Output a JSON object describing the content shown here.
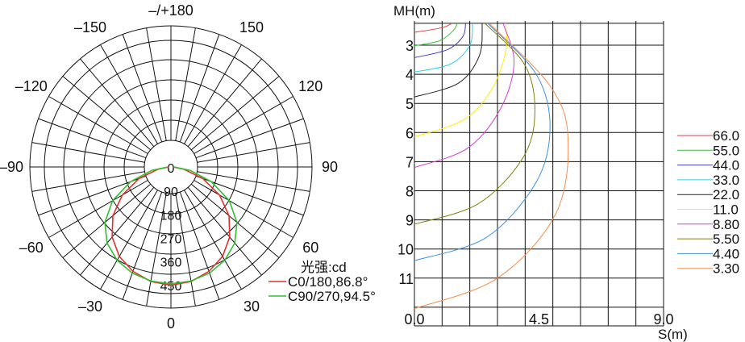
{
  "chart_data": [
    {
      "type": "polar",
      "angle_labels": [
        {
          "text": "–/+180",
          "deg": 180
        },
        {
          "text": "–150",
          "deg": -150
        },
        {
          "text": "150",
          "deg": 150
        },
        {
          "text": "–120",
          "deg": -120
        },
        {
          "text": "120",
          "deg": 120
        },
        {
          "text": "–90",
          "deg": -90
        },
        {
          "text": "90",
          "deg": 90
        },
        {
          "text": "–60",
          "deg": -60
        },
        {
          "text": "60",
          "deg": 60
        },
        {
          "text": "–30",
          "deg": -30
        },
        {
          "text": "30",
          "deg": 30
        },
        {
          "text": "0",
          "deg": 0
        }
      ],
      "radial_labels": [
        "0",
        "90",
        "180",
        "270",
        "360",
        "450"
      ],
      "radial_max": 540,
      "unit_label": "光强:cd",
      "series": [
        {
          "name": "C0/180,86.8°",
          "color": "#e03030",
          "points": [
            [
              0,
              452
            ],
            [
              10,
              445
            ],
            [
              20,
              425
            ],
            [
              30,
              395
            ],
            [
              40,
              350
            ],
            [
              50,
              290
            ],
            [
              60,
              215
            ],
            [
              70,
              130
            ],
            [
              80,
              50
            ],
            [
              90,
              8
            ]
          ]
        },
        {
          "name": "C90/270,94.5°",
          "color": "#30c030",
          "points": [
            [
              0,
              447
            ],
            [
              10,
              443
            ],
            [
              20,
              432
            ],
            [
              30,
              412
            ],
            [
              40,
              380
            ],
            [
              50,
              330
            ],
            [
              60,
              258
            ],
            [
              70,
              165
            ],
            [
              80,
              75
            ],
            [
              90,
              12
            ]
          ]
        }
      ]
    },
    {
      "type": "line",
      "y_axis_label": "MH(m)",
      "x_axis_label": "S(m)",
      "x_tick_labels": [
        "0.0",
        "4.5",
        "9.0"
      ],
      "y_tick_labels": [
        "3",
        "4",
        "5",
        "6",
        "7",
        "8",
        "9",
        "10",
        "11"
      ],
      "xlim": [
        0,
        9.0
      ],
      "ylim": [
        2.25,
        12.25
      ],
      "grid": true,
      "legend_position": "right",
      "series": [
        {
          "name": "66.0",
          "color": "#e04040",
          "points": [
            [
              0,
              2.56
            ],
            [
              1.0,
              2.4
            ],
            [
              1.35,
              2.25
            ]
          ]
        },
        {
          "name": "55.0",
          "color": "#40c040",
          "points": [
            [
              0,
              3.02
            ],
            [
              0.9,
              2.85
            ],
            [
              1.4,
              2.5
            ],
            [
              1.55,
              2.25
            ]
          ]
        },
        {
          "name": "44.0",
          "color": "#4040c0",
          "points": [
            [
              0,
              3.43
            ],
            [
              1.2,
              3.15
            ],
            [
              1.75,
              2.7
            ],
            [
              1.85,
              2.25
            ]
          ]
        },
        {
          "name": "33.0",
          "color": "#30d0e0",
          "points": [
            [
              0,
              3.92
            ],
            [
              1.3,
              3.65
            ],
            [
              2.0,
              3.0
            ],
            [
              2.1,
              2.25
            ]
          ]
        },
        {
          "name": "22.0",
          "color": "#222222",
          "points": [
            [
              0,
              4.78
            ],
            [
              1.6,
              4.3
            ],
            [
              2.35,
              3.35
            ],
            [
              2.45,
              2.25
            ]
          ]
        },
        {
          "name": "11.0",
          "color": "#ffee00",
          "points": [
            [
              0,
              6.15
            ],
            [
              1.8,
              5.55
            ],
            [
              2.8,
              4.5
            ],
            [
              3.3,
              3.2
            ],
            [
              3.3,
              2.25
            ]
          ]
        },
        {
          "name": "8.80",
          "color": "#d040d0",
          "points": [
            [
              0,
              7.2
            ],
            [
              1.9,
              6.55
            ],
            [
              3.1,
              5.2
            ],
            [
              3.6,
              3.6
            ],
            [
              3.2,
              2.25
            ]
          ]
        },
        {
          "name": "5.50",
          "color": "#808010",
          "points": [
            [
              0,
              9.15
            ],
            [
              2.3,
              8.45
            ],
            [
              3.9,
              6.9
            ],
            [
              4.35,
              5.35
            ],
            [
              4.0,
              3.7
            ],
            [
              2.55,
              2.25
            ]
          ]
        },
        {
          "name": "4.40",
          "color": "#4090e0",
          "points": [
            [
              0,
              10.4
            ],
            [
              2.6,
              9.6
            ],
            [
              4.4,
              7.7
            ],
            [
              4.9,
              5.8
            ],
            [
              4.4,
              4.0
            ],
            [
              2.65,
              2.25
            ]
          ]
        },
        {
          "name": "3.30",
          "color": "#f09050",
          "points": [
            [
              0,
              12.05
            ],
            [
              3.0,
              11.0
            ],
            [
              5.1,
              8.8
            ],
            [
              5.55,
              6.2
            ],
            [
              4.9,
              4.4
            ],
            [
              2.7,
              2.25
            ]
          ]
        }
      ]
    }
  ]
}
